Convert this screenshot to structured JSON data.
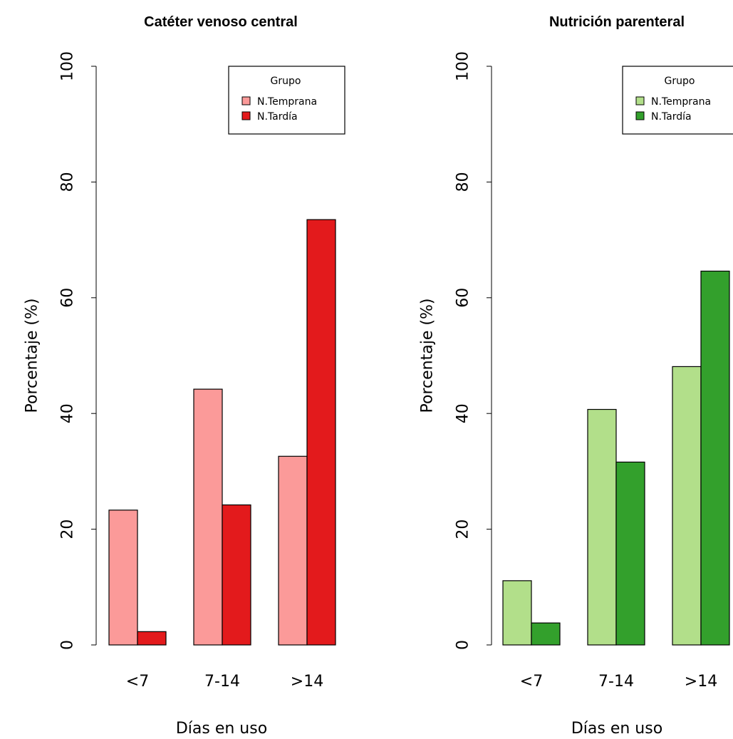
{
  "chart_data": [
    {
      "type": "bar",
      "title": "Catéter venoso central",
      "xlabel": "Días en uso",
      "ylabel": "Porcentaje (%)",
      "ylim": [
        0,
        100
      ],
      "yticks": [
        "0",
        "20",
        "40",
        "60",
        "80",
        "100"
      ],
      "categories": [
        "<7",
        "7-14",
        ">14"
      ],
      "legend": {
        "title": "Grupo",
        "position": "top-right"
      },
      "series": [
        {
          "name": "N.Temprana",
          "color": "#fb9a99",
          "values": [
            23.3,
            44.2,
            32.6
          ]
        },
        {
          "name": "N.Tardía",
          "color": "#e31a1c",
          "values": [
            2.3,
            24.2,
            73.5
          ]
        }
      ]
    },
    {
      "type": "bar",
      "title": "Nutrición parenteral",
      "xlabel": "Días en uso",
      "ylabel": "Porcentaje (%)",
      "ylim": [
        0,
        100
      ],
      "yticks": [
        "0",
        "20",
        "40",
        "60",
        "80",
        "100"
      ],
      "categories": [
        "<7",
        "7-14",
        ">14"
      ],
      "legend": {
        "title": "Grupo",
        "position": "top-right"
      },
      "series": [
        {
          "name": "N.Temprana",
          "color": "#b2df8a",
          "values": [
            11.1,
            40.7,
            48.1
          ]
        },
        {
          "name": "N.Tardía",
          "color": "#33a02c",
          "values": [
            3.8,
            31.6,
            64.6
          ]
        }
      ]
    }
  ]
}
